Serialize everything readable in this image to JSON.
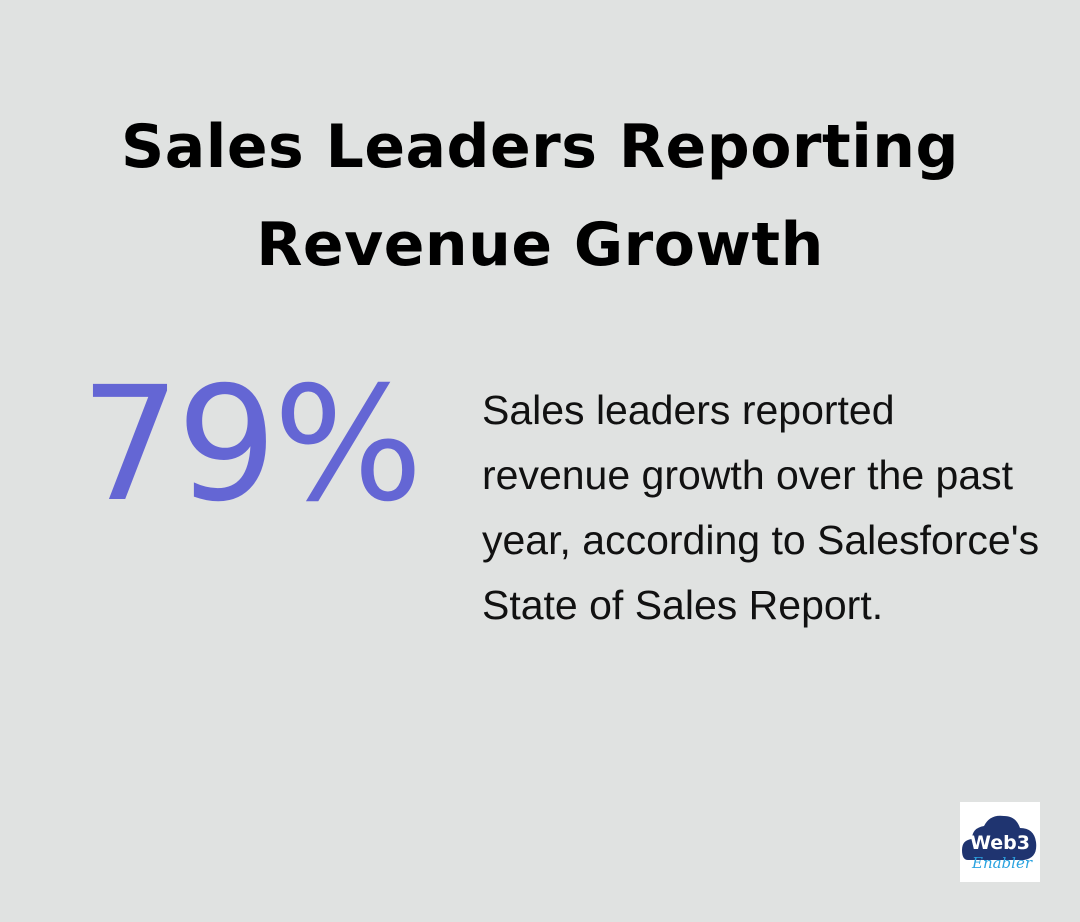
{
  "title": "Sales Leaders Reporting Revenue Growth",
  "stat": {
    "value": "79%",
    "color": "#6466d4"
  },
  "description": "Sales leaders reported revenue growth over the past year, according to Salesforce's State of Sales Report.",
  "logo": {
    "line1": "Web3",
    "line2": "Enabler"
  }
}
